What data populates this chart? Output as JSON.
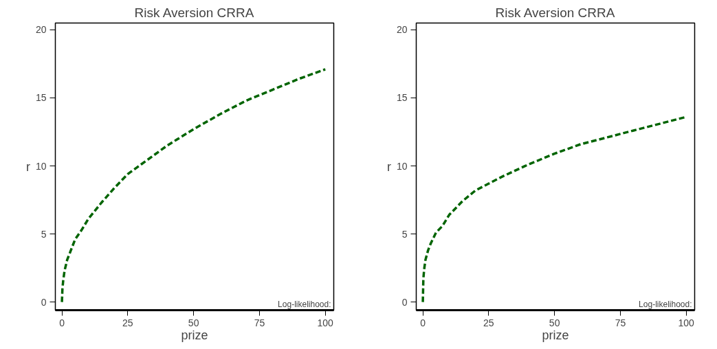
{
  "chart_data": [
    {
      "type": "line",
      "title": "Risk Aversion CRRA",
      "xlabel": "prize",
      "ylabel": "r",
      "annotations": [
        "Log-likelihood:"
      ],
      "x": [
        0,
        0.2,
        0.5,
        1,
        2,
        3,
        5,
        7.5,
        10,
        15,
        20,
        25,
        30,
        40,
        50,
        60,
        70,
        80,
        90,
        100
      ],
      "series": [
        {
          "color": "#006400",
          "values": [
            0,
            1.0,
            1.6,
            2.3,
            3.1,
            3.6,
            4.6,
            5.3,
            6.1,
            7.3,
            8.4,
            9.4,
            10.1,
            11.5,
            12.7,
            13.8,
            14.8,
            15.6,
            16.4,
            17.1
          ]
        }
      ],
      "xlim": [
        -2.5,
        103.2
      ],
      "ylim": [
        -0.6,
        20.5
      ],
      "xticks": [
        0,
        25,
        50,
        75,
        100
      ],
      "yticks": [
        0,
        5,
        10,
        15,
        20
      ],
      "grid": false,
      "line_style": "dashed",
      "marker": "none"
    },
    {
      "type": "line",
      "title": "Risk Aversion CRRA",
      "xlabel": "prize",
      "ylabel": "r",
      "annotations": [
        "Log-likelihood:"
      ],
      "x": [
        0,
        0.2,
        0.5,
        1,
        2,
        3,
        5,
        7.5,
        10,
        15,
        20,
        25,
        30,
        40,
        50,
        60,
        70,
        80,
        90,
        100
      ],
      "series": [
        {
          "color": "#006400",
          "values": [
            0,
            1.7,
            2.4,
            3.1,
            3.8,
            4.3,
            5.1,
            5.6,
            6.4,
            7.4,
            8.2,
            8.7,
            9.2,
            10.1,
            10.9,
            11.6,
            12.1,
            12.6,
            13.1,
            13.6
          ]
        }
      ],
      "xlim": [
        -2.5,
        103.2
      ],
      "ylim": [
        -0.6,
        20.5
      ],
      "xticks": [
        0,
        25,
        50,
        75,
        100
      ],
      "yticks": [
        0,
        5,
        10,
        15,
        20
      ],
      "grid": false,
      "line_style": "dashed",
      "marker": "none"
    }
  ]
}
